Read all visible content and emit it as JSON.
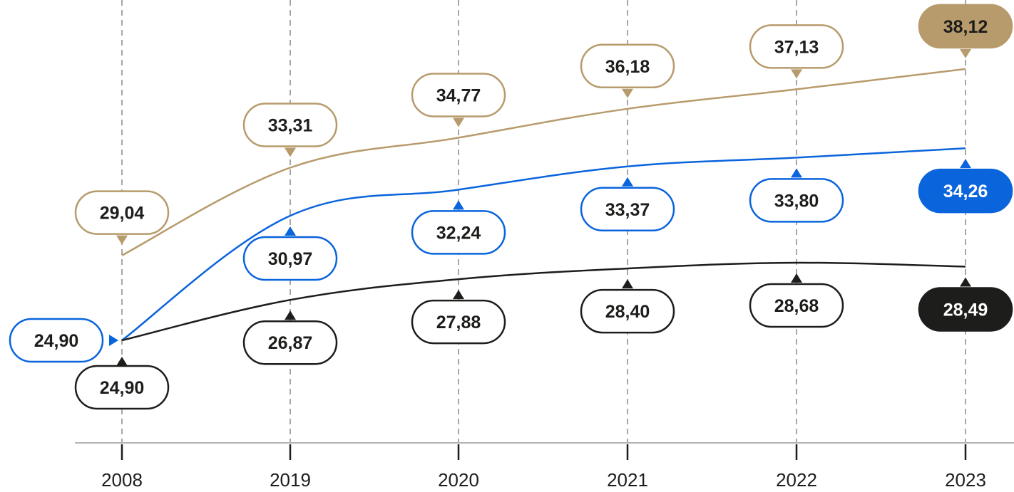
{
  "chart_data": {
    "type": "line",
    "categories": [
      "2008",
      "2019",
      "2020",
      "2021",
      "2022",
      "2023"
    ],
    "ylim": [
      22,
      40
    ],
    "grid": "vertical-dashed",
    "legend": "none",
    "series": [
      {
        "color": "#b79b6c",
        "values": [
          29.04,
          33.31,
          34.77,
          36.18,
          37.13,
          38.12
        ],
        "labels": [
          "29,04",
          "33,31",
          "34,77",
          "36,18",
          "37,13",
          "38,12"
        ],
        "label_side": "above"
      },
      {
        "color": "#0a64dc",
        "values": [
          24.9,
          30.97,
          32.24,
          33.37,
          33.8,
          34.26
        ],
        "labels": [
          "24,90",
          "30,97",
          "32,24",
          "33,37",
          "33,80",
          "34,26"
        ],
        "label_side": "below",
        "first_label_side": "left"
      },
      {
        "color": "#1d1d1b",
        "values": [
          24.9,
          26.87,
          27.88,
          28.4,
          28.68,
          28.49
        ],
        "labels": [
          "24,90",
          "26,87",
          "27,88",
          "28,40",
          "28,68",
          "28,49"
        ],
        "label_side": "below"
      }
    ],
    "highlight_last": true
  }
}
